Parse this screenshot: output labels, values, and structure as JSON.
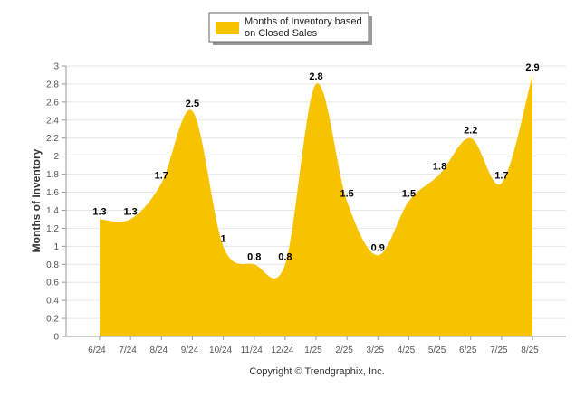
{
  "chart_data": {
    "type": "area",
    "title": "",
    "xlabel": "",
    "ylabel": "Months of Inventory",
    "legend": {
      "position": "top-center"
    },
    "series": [
      {
        "name": "Months of Inventory based on Closed Sales",
        "name_lines": [
          "Months of Inventory based",
          "on Closed Sales"
        ],
        "color": "#F7C200",
        "values": [
          1.3,
          1.3,
          1.7,
          2.5,
          1,
          0.8,
          0.8,
          2.8,
          1.5,
          0.9,
          1.5,
          1.8,
          2.2,
          1.7,
          2.9
        ],
        "data_labels": [
          "1.3",
          "1.3",
          "1.7",
          "2.5",
          "1",
          "0.8",
          "0.8",
          "2.8",
          "1.5",
          "0.9",
          "1.5",
          "1.8",
          "2.2",
          "1.7",
          "2.9"
        ]
      }
    ],
    "categories": [
      "6/24",
      "7/24",
      "8/24",
      "9/24",
      "10/24",
      "11/24",
      "12/24",
      "1/25",
      "2/25",
      "3/25",
      "4/25",
      "5/25",
      "6/25",
      "7/25",
      "8/25"
    ],
    "ylim": [
      0,
      3
    ],
    "yticks": [
      "0",
      "0.2",
      "0.4",
      "0.6",
      "0.8",
      "1",
      "1.2",
      "1.4",
      "1.6",
      "1.8",
      "2",
      "2.2",
      "2.4",
      "2.6",
      "2.8",
      "3"
    ],
    "grid": true
  },
  "footer": {
    "copyright": "Copyright © Trendgraphix, Inc."
  }
}
